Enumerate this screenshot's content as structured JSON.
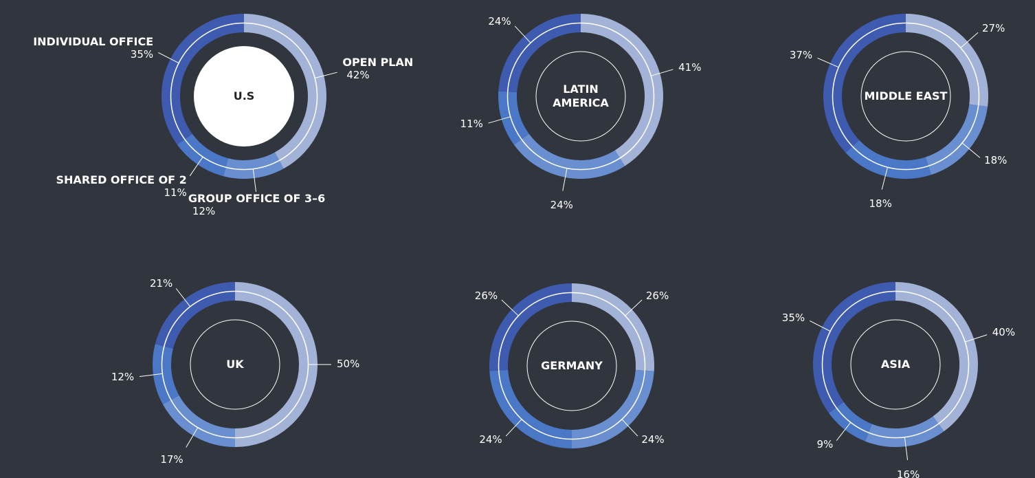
{
  "chart_data": [
    {
      "type": "donut",
      "title": "U.S",
      "center": "filled",
      "categories": [
        "OPEN PLAN",
        "GROUP OFFICE OF 3–6",
        "SHARED OFFICE OF 2",
        "INDIVIDUAL OFFICE"
      ],
      "values": [
        42,
        12,
        11,
        35
      ],
      "value_labels": [
        "42%",
        "12%",
        "11%",
        "35%"
      ],
      "colors": [
        "#a3b3d8",
        "#6a8fd1",
        "#4a77c6",
        "#3e5bb0"
      ]
    },
    {
      "type": "donut",
      "title": "LATIN AMERICA",
      "center": "outline",
      "values": [
        41,
        24,
        11,
        24
      ],
      "value_labels": [
        "41%",
        "24%",
        "11%",
        "24%"
      ],
      "colors": [
        "#a3b3d8",
        "#6a8fd1",
        "#4a77c6",
        "#3e5bb0"
      ]
    },
    {
      "type": "donut",
      "title": "MIDDLE EAST",
      "center": "outline",
      "values": [
        27,
        18,
        18,
        37
      ],
      "value_labels": [
        "27%",
        "18%",
        "18%",
        "37%"
      ],
      "colors": [
        "#a3b3d8",
        "#6a8fd1",
        "#4a77c6",
        "#3e5bb0"
      ]
    },
    {
      "type": "donut",
      "title": "UK",
      "center": "outline",
      "values": [
        50,
        17,
        12,
        21
      ],
      "value_labels": [
        "50%",
        "17%",
        "12%",
        "21%"
      ],
      "colors": [
        "#a3b3d8",
        "#6a8fd1",
        "#4a77c6",
        "#3e5bb0"
      ]
    },
    {
      "type": "donut",
      "title": "GERMANY",
      "center": "outline",
      "values": [
        26,
        24,
        24,
        26
      ],
      "value_labels": [
        "26%",
        "24%",
        "24%",
        "26%"
      ],
      "colors": [
        "#a3b3d8",
        "#6a8fd1",
        "#4a77c6",
        "#3e5bb0"
      ]
    },
    {
      "type": "donut",
      "title": "ASIA",
      "center": "outline",
      "values": [
        40,
        16,
        9,
        35
      ],
      "value_labels": [
        "40%",
        "16%",
        "9%",
        "35%"
      ],
      "colors": [
        "#a3b3d8",
        "#6a8fd1",
        "#4a77c6",
        "#3e5bb0"
      ]
    }
  ]
}
